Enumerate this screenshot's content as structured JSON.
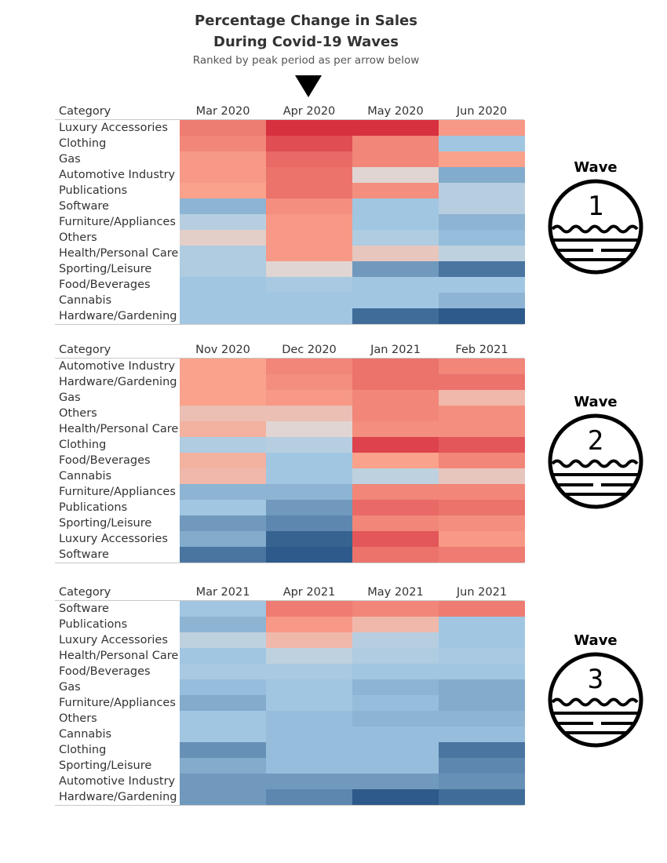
{
  "title_line1": "Percentage Change in Sales",
  "title_line2": "During Covid-19 Waves",
  "subtitle": "Ranked by peak period as per arrow below",
  "category_header": "Category",
  "colors": {
    "strong_increase": "#d7303f",
    "strong_decrease": "#2d5a8a",
    "neutral": "#dcdcdc"
  },
  "chart_data": [
    {
      "type": "heatmap",
      "wave_label": "Wave",
      "wave_number": "1",
      "columns": [
        "Mar 2020",
        "Apr 2020",
        "May 2020",
        "Jun 2020"
      ],
      "rows": [
        {
          "category": "Luxury Accessories",
          "values": [
            0.6,
            1.0,
            1.0,
            0.45
          ]
        },
        {
          "category": "Clothing",
          "values": [
            0.55,
            0.85,
            0.55,
            -0.4
          ]
        },
        {
          "category": "Gas",
          "values": [
            0.45,
            0.7,
            0.55,
            0.4
          ]
        },
        {
          "category": "Automotive Industry",
          "values": [
            0.45,
            0.65,
            0.05,
            -0.55
          ]
        },
        {
          "category": "Publications",
          "values": [
            0.4,
            0.65,
            0.5,
            -0.25
          ]
        },
        {
          "category": "Software",
          "values": [
            -0.5,
            0.5,
            -0.4,
            -0.25
          ]
        },
        {
          "category": "Furniture/Appliances",
          "values": [
            -0.25,
            0.45,
            -0.4,
            -0.5
          ]
        },
        {
          "category": "Others",
          "values": [
            0.1,
            0.45,
            -0.3,
            -0.45
          ]
        },
        {
          "category": "Health/Personal Care",
          "values": [
            -0.3,
            0.45,
            0.15,
            -0.2
          ]
        },
        {
          "category": "Sporting/Leisure",
          "values": [
            -0.3,
            0.05,
            -0.65,
            -0.85
          ]
        },
        {
          "category": "Food/Beverages",
          "values": [
            -0.4,
            -0.35,
            -0.4,
            -0.4
          ]
        },
        {
          "category": "Cannabis",
          "values": [
            -0.4,
            -0.4,
            -0.4,
            -0.5
          ]
        },
        {
          "category": "Hardware/Gardening",
          "values": [
            -0.4,
            -0.4,
            -0.9,
            -1.0
          ]
        }
      ]
    },
    {
      "type": "heatmap",
      "wave_label": "Wave",
      "wave_number": "2",
      "columns": [
        "Nov 2020",
        "Dec 2020",
        "Jan 2021",
        "Feb 2021"
      ],
      "rows": [
        {
          "category": "Automotive Industry",
          "values": [
            0.4,
            0.55,
            0.65,
            0.55
          ]
        },
        {
          "category": "Hardware/Gardening",
          "values": [
            0.4,
            0.5,
            0.65,
            0.65
          ]
        },
        {
          "category": "Gas",
          "values": [
            0.4,
            0.45,
            0.55,
            0.25
          ]
        },
        {
          "category": "Others",
          "values": [
            0.2,
            0.2,
            0.55,
            0.5
          ]
        },
        {
          "category": "Health/Personal Care",
          "values": [
            0.3,
            0.05,
            0.5,
            0.5
          ]
        },
        {
          "category": "Clothing",
          "values": [
            -0.3,
            -0.25,
            0.9,
            0.8
          ]
        },
        {
          "category": "Food/Beverages",
          "values": [
            0.3,
            -0.4,
            0.4,
            0.55
          ]
        },
        {
          "category": "Cannabis",
          "values": [
            0.25,
            -0.4,
            -0.2,
            0.15
          ]
        },
        {
          "category": "Furniture/Appliances",
          "values": [
            -0.5,
            -0.5,
            0.55,
            0.55
          ]
        },
        {
          "category": "Publications",
          "values": [
            -0.4,
            -0.65,
            0.7,
            0.65
          ]
        },
        {
          "category": "Sporting/Leisure",
          "values": [
            -0.65,
            -0.75,
            0.55,
            0.5
          ]
        },
        {
          "category": "Luxury Accessories",
          "values": [
            -0.55,
            -0.95,
            0.8,
            0.45
          ]
        },
        {
          "category": "Software",
          "values": [
            -0.85,
            -1.0,
            0.65,
            0.6
          ]
        }
      ]
    },
    {
      "type": "heatmap",
      "wave_label": "Wave",
      "wave_number": "3",
      "columns": [
        "Mar 2021",
        "Apr 2021",
        "May 2021",
        "Jun 2021"
      ],
      "rows": [
        {
          "category": "Software",
          "values": [
            -0.4,
            0.6,
            0.55,
            0.6
          ]
        },
        {
          "category": "Publications",
          "values": [
            -0.5,
            0.45,
            0.25,
            -0.4
          ]
        },
        {
          "category": "Luxury Accessories",
          "values": [
            -0.2,
            0.25,
            -0.25,
            -0.4
          ]
        },
        {
          "category": "Health/Personal Care",
          "values": [
            -0.4,
            -0.2,
            -0.3,
            -0.35
          ]
        },
        {
          "category": "Food/Beverages",
          "values": [
            -0.35,
            -0.35,
            -0.4,
            -0.4
          ]
        },
        {
          "category": "Gas",
          "values": [
            -0.45,
            -0.4,
            -0.5,
            -0.55
          ]
        },
        {
          "category": "Furniture/Appliances",
          "values": [
            -0.55,
            -0.4,
            -0.45,
            -0.55
          ]
        },
        {
          "category": "Others",
          "values": [
            -0.4,
            -0.45,
            -0.5,
            -0.5
          ]
        },
        {
          "category": "Cannabis",
          "values": [
            -0.4,
            -0.45,
            -0.45,
            -0.45
          ]
        },
        {
          "category": "Clothing",
          "values": [
            -0.7,
            -0.45,
            -0.45,
            -0.85
          ]
        },
        {
          "category": "Sporting/Leisure",
          "values": [
            -0.55,
            -0.45,
            -0.45,
            -0.75
          ]
        },
        {
          "category": "Automotive Industry",
          "values": [
            -0.65,
            -0.65,
            -0.65,
            -0.7
          ]
        },
        {
          "category": "Hardware/Gardening",
          "values": [
            -0.65,
            -0.75,
            -1.0,
            -0.9
          ]
        }
      ]
    }
  ]
}
